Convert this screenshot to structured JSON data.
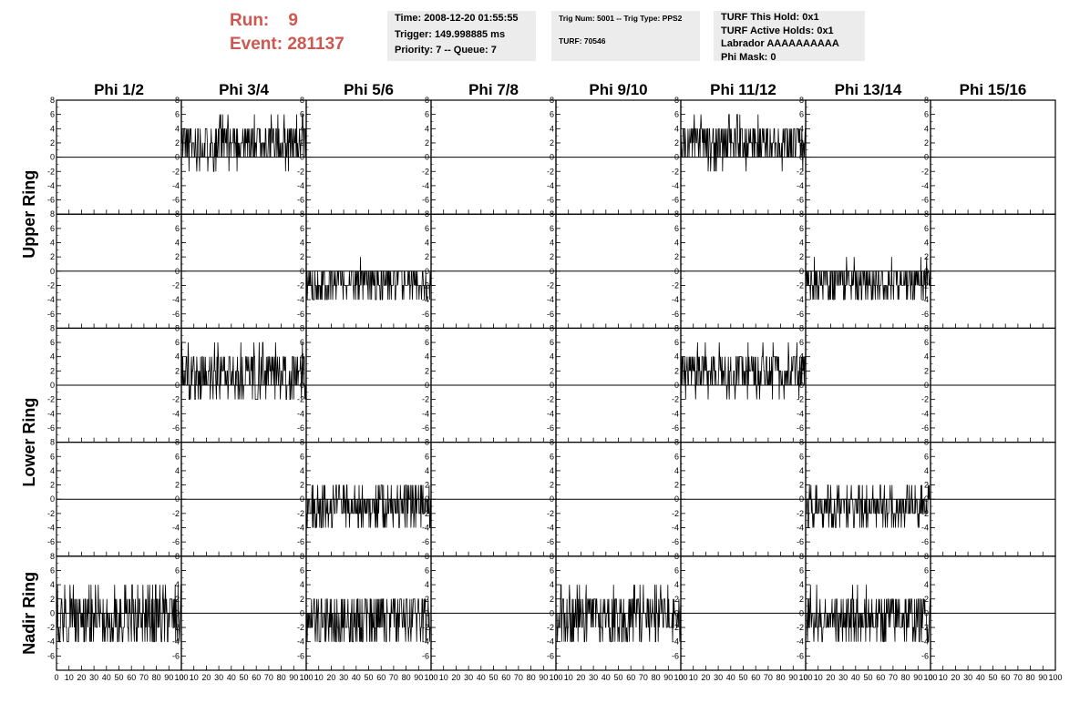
{
  "header": {
    "run_label": "Run:",
    "run_value": "9",
    "event_label": "Event:",
    "event_value": "281137",
    "run_color": "#d0574f",
    "box_color": "#ececec"
  },
  "info_box_1": {
    "time": "Time: 2008-12-20 01:55:55",
    "trigger": "Trigger: 149.998885 ms",
    "priority": "Priority: 7 -- Queue: 7"
  },
  "info_box_2": {
    "trig": "Trig Num: 5001 -- Trig Type: PPS2",
    "turf": "TURF: 70546"
  },
  "info_box_3": {
    "this_hold": "TURF This Hold: 0x1",
    "active_holds": "TURF Active Holds: 0x1",
    "labrador": "Labrador AAAAAAAAAA",
    "phi_mask": "Phi Mask: 0"
  },
  "chart_data": {
    "type": "line",
    "columns": [
      "Phi 1/2",
      "Phi 3/4",
      "Phi 5/6",
      "Phi 7/8",
      "Phi 9/10",
      "Phi 11/12",
      "Phi 13/14",
      "Phi 15/16"
    ],
    "row_groups": [
      {
        "label": "Upper Ring",
        "rows": [
          0,
          1
        ]
      },
      {
        "label": "Lower Ring",
        "rows": [
          2,
          3
        ]
      },
      {
        "label": "Nadir Ring",
        "rows": [
          4
        ]
      }
    ],
    "xlim": [
      0,
      100
    ],
    "ylim": [
      -8,
      8
    ],
    "x_ticks": [
      0,
      10,
      20,
      30,
      40,
      50,
      60,
      70,
      80,
      90,
      100
    ],
    "y_ticks": [
      -6,
      -4,
      -2,
      0,
      2,
      4,
      6,
      8
    ],
    "bottom_tick_labels": [
      "0",
      "10",
      "20",
      "30",
      "40",
      "50",
      "60",
      "70",
      "80",
      "90",
      "100"
    ],
    "panels": [
      [
        {
          "active": false
        },
        {
          "active": true,
          "level": 2.0,
          "amp": 3.3,
          "min": -2.5,
          "max": 6.0,
          "seed": 11
        },
        {
          "active": false
        },
        {
          "active": false
        },
        {
          "active": false
        },
        {
          "active": true,
          "level": 2.0,
          "amp": 3.3,
          "min": -4.0,
          "max": 6.0,
          "seed": 23
        },
        {
          "active": false
        },
        {
          "active": false
        }
      ],
      [
        {
          "active": false
        },
        {
          "active": false
        },
        {
          "active": true,
          "level": -1.5,
          "amp": 2.6,
          "min": -4.0,
          "max": 2.0,
          "seed": 31
        },
        {
          "active": false
        },
        {
          "active": false
        },
        {
          "active": false
        },
        {
          "active": true,
          "level": -1.5,
          "amp": 2.6,
          "min": -4.0,
          "max": 2.0,
          "seed": 37
        },
        {
          "active": false
        }
      ],
      [
        {
          "active": false
        },
        {
          "active": true,
          "level": 1.5,
          "amp": 3.8,
          "min": -3.0,
          "max": 6.0,
          "seed": 41
        },
        {
          "active": false
        },
        {
          "active": false
        },
        {
          "active": false
        },
        {
          "active": true,
          "level": 2.0,
          "amp": 3.2,
          "min": -2.5,
          "max": 6.0,
          "seed": 47
        },
        {
          "active": false
        },
        {
          "active": false
        }
      ],
      [
        {
          "active": false
        },
        {
          "active": false
        },
        {
          "active": true,
          "level": -1.0,
          "amp": 2.8,
          "min": -4.0,
          "max": 4.0,
          "seed": 53
        },
        {
          "active": false
        },
        {
          "active": false
        },
        {
          "active": false
        },
        {
          "active": true,
          "level": -1.0,
          "amp": 2.6,
          "min": -4.0,
          "max": 2.0,
          "seed": 59
        },
        {
          "active": false
        }
      ],
      [
        {
          "active": true,
          "level": -0.5,
          "amp": 4.2,
          "min": -6.0,
          "max": 6.0,
          "seed": 61
        },
        {
          "active": false
        },
        {
          "active": true,
          "level": -1.0,
          "amp": 4.0,
          "min": -6.0,
          "max": 6.0,
          "seed": 67
        },
        {
          "active": false
        },
        {
          "active": true,
          "level": -0.5,
          "amp": 3.8,
          "min": -6.0,
          "max": 6.0,
          "seed": 71
        },
        {
          "active": false
        },
        {
          "active": true,
          "level": -0.5,
          "amp": 3.6,
          "min": -6.0,
          "max": 6.0,
          "seed": 73
        },
        {
          "active": false
        }
      ]
    ]
  }
}
